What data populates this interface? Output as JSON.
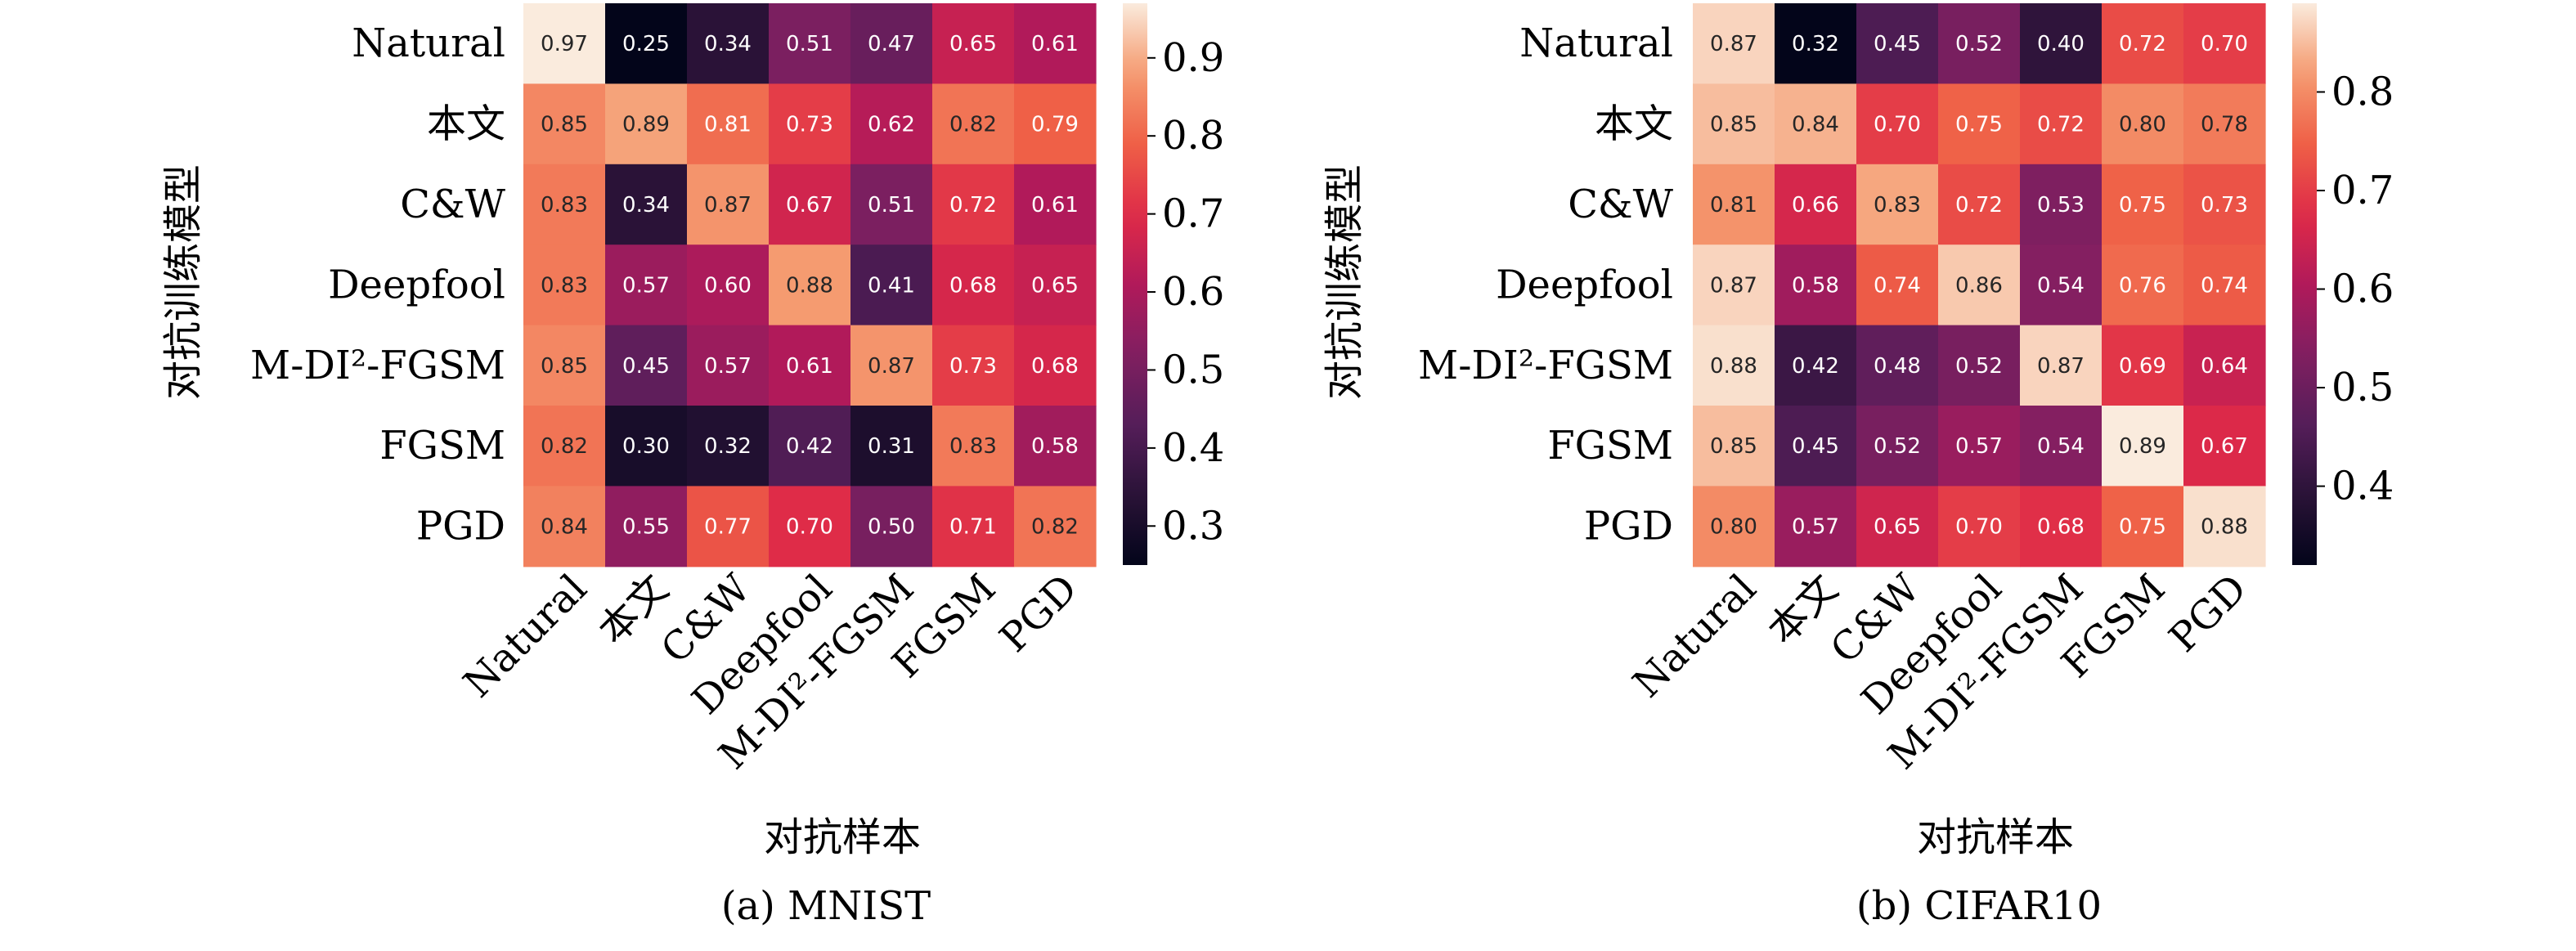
{
  "figure": {
    "panels": [
      {
        "caption": "(a) MNIST"
      },
      {
        "caption": "(b) CIFAR10"
      }
    ]
  },
  "chart_data": [
    {
      "type": "heatmap",
      "title": "(a) MNIST",
      "xlabel": "对抗样本",
      "ylabel": "对抗训练模型",
      "rows": [
        "Natural",
        "本文",
        "C&W",
        "Deepfool",
        "M-DI²-FGSM",
        "FGSM",
        "PGD"
      ],
      "cols": [
        "Natural",
        "本文",
        "C&W",
        "Deepfool",
        "M-DI²-FGSM",
        "FGSM",
        "PGD"
      ],
      "values": [
        [
          0.97,
          0.25,
          0.34,
          0.51,
          0.47,
          0.65,
          0.61
        ],
        [
          0.85,
          0.89,
          0.81,
          0.73,
          0.62,
          0.82,
          0.79
        ],
        [
          0.83,
          0.34,
          0.87,
          0.67,
          0.51,
          0.72,
          0.61
        ],
        [
          0.83,
          0.57,
          0.6,
          0.88,
          0.41,
          0.68,
          0.65
        ],
        [
          0.85,
          0.45,
          0.57,
          0.61,
          0.87,
          0.73,
          0.68
        ],
        [
          0.82,
          0.3,
          0.32,
          0.42,
          0.31,
          0.83,
          0.58
        ],
        [
          0.84,
          0.55,
          0.77,
          0.7,
          0.5,
          0.71,
          0.82
        ]
      ],
      "colorbar": {
        "vmin": 0.25,
        "vmax": 0.97,
        "ticks": [
          0.3,
          0.4,
          0.5,
          0.6,
          0.7,
          0.8,
          0.9
        ]
      }
    },
    {
      "type": "heatmap",
      "title": "(b) CIFAR10",
      "xlabel": "对抗样本",
      "ylabel": "对抗训练模型",
      "rows": [
        "Natural",
        "本文",
        "C&W",
        "Deepfool",
        "M-DI²-FGSM",
        "FGSM",
        "PGD"
      ],
      "cols": [
        "Natural",
        "本文",
        "C&W",
        "Deepfool",
        "M-DI²-FGSM",
        "FGSM",
        "PGD"
      ],
      "values": [
        [
          0.87,
          0.32,
          0.45,
          0.52,
          0.4,
          0.72,
          0.7
        ],
        [
          0.85,
          0.84,
          0.7,
          0.75,
          0.72,
          0.8,
          0.78
        ],
        [
          0.81,
          0.66,
          0.83,
          0.72,
          0.53,
          0.75,
          0.73
        ],
        [
          0.87,
          0.58,
          0.74,
          0.86,
          0.54,
          0.76,
          0.74
        ],
        [
          0.88,
          0.42,
          0.48,
          0.52,
          0.87,
          0.69,
          0.64
        ],
        [
          0.85,
          0.45,
          0.52,
          0.57,
          0.54,
          0.89,
          0.67
        ],
        [
          0.8,
          0.57,
          0.65,
          0.7,
          0.68,
          0.75,
          0.88
        ]
      ],
      "colorbar": {
        "vmin": 0.32,
        "vmax": 0.89,
        "ticks": [
          0.4,
          0.5,
          0.6,
          0.7,
          0.8
        ]
      }
    }
  ]
}
